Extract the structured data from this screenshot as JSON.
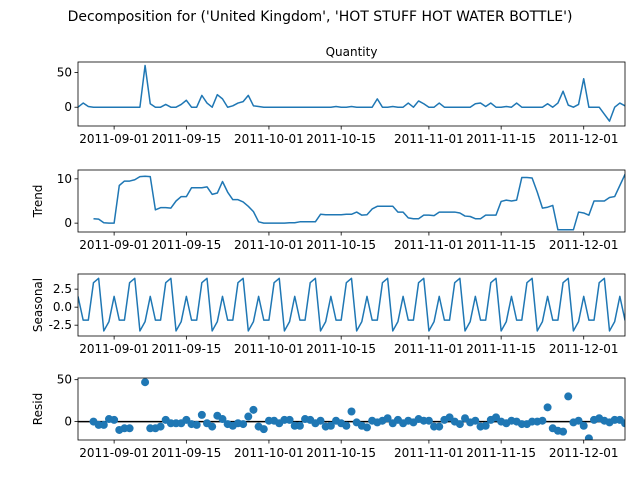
{
  "title": "Decomposition for ('United Kingdom', 'HOT STUFF HOT WATER BOTTLE')",
  "chart_data": [
    {
      "type": "line",
      "title": "Quantity",
      "ylabel": "",
      "ylim": [
        -27,
        65
      ],
      "yticks": [
        0,
        50
      ],
      "x_start": "2011-08-25",
      "x_range": [
        "2011-08-25",
        "2011-12-09"
      ],
      "xticks": [
        "2011-09-01",
        "2011-09-15",
        "2011-10-01",
        "2011-10-15",
        "2011-11-01",
        "2011-11-15",
        "2011-12-01"
      ],
      "color": "#1f77b4",
      "values": [
        0,
        6,
        1,
        0,
        0,
        0,
        0,
        0,
        0,
        0,
        0,
        0,
        0,
        60,
        5,
        0,
        0,
        4,
        0,
        0,
        4,
        10,
        0,
        0,
        17,
        6,
        0,
        18,
        12,
        0,
        2,
        6,
        8,
        17,
        2,
        1,
        0,
        0,
        0,
        0,
        0,
        0,
        0,
        0,
        0,
        0,
        0,
        0,
        0,
        0,
        1,
        0,
        0,
        1,
        0,
        0,
        0,
        0,
        12,
        0,
        0,
        1,
        0,
        0,
        6,
        0,
        9,
        5,
        0,
        0,
        6,
        0,
        0,
        0,
        0,
        0,
        0,
        5,
        6,
        1,
        6,
        0,
        0,
        1,
        0,
        6,
        0,
        0,
        0,
        0,
        0,
        5,
        0,
        6,
        23,
        3,
        0,
        4,
        41,
        0,
        0,
        0,
        -10,
        -20,
        0,
        6,
        2,
        0,
        3,
        1,
        5,
        0,
        2,
        1,
        26,
        0,
        0,
        6,
        7,
        17,
        15,
        5
      ]
    },
    {
      "type": "line",
      "title": "",
      "ylabel": "Trend",
      "ylim": [
        -2,
        12
      ],
      "yticks": [
        0,
        10
      ],
      "x_start": "2011-08-25",
      "x_range": [
        "2011-08-25",
        "2011-12-09"
      ],
      "xticks": [
        "2011-09-01",
        "2011-09-15",
        "2011-10-01",
        "2011-10-15",
        "2011-11-01",
        "2011-11-15",
        "2011-12-01"
      ],
      "color": "#1f77b4",
      "values": [
        null,
        null,
        null,
        1.0,
        0.9,
        0.1,
        0.0,
        0.0,
        8.5,
        9.5,
        9.5,
        9.8,
        10.5,
        10.6,
        10.5,
        3.0,
        3.5,
        3.5,
        3.4,
        5.0,
        6.0,
        6.0,
        8.0,
        8.0,
        8.0,
        8.2,
        6.5,
        6.8,
        9.4,
        7.0,
        5.3,
        5.3,
        4.8,
        3.8,
        2.6,
        0.3,
        0.0,
        0.0,
        0.0,
        0.0,
        0.0,
        0.1,
        0.1,
        0.3,
        0.3,
        0.3,
        0.3,
        2.0,
        1.9,
        1.9,
        1.9,
        1.9,
        2.0,
        2.0,
        2.5,
        1.8,
        1.9,
        3.2,
        3.8,
        3.8,
        3.8,
        3.8,
        2.5,
        2.5,
        1.2,
        1.0,
        1.0,
        1.8,
        1.8,
        1.7,
        2.5,
        2.5,
        2.5,
        2.5,
        2.3,
        1.6,
        1.5,
        1.0,
        1.0,
        1.8,
        1.8,
        1.8,
        4.9,
        5.2,
        5.0,
        5.2,
        10.3,
        10.3,
        10.2,
        7.0,
        3.4,
        3.6,
        4.0,
        -1.5,
        -1.5,
        -1.5,
        -1.5,
        2.5,
        2.3,
        1.8,
        5.0,
        5.0,
        5.0,
        5.8,
        6.0,
        8.5,
        11.0,
        7.5
      ]
    },
    {
      "type": "line",
      "title": "",
      "ylabel": "Seasonal",
      "ylim": [
        -4.0,
        4.6
      ],
      "yticks": [
        -2.5,
        0.0,
        2.5
      ],
      "x_start": "2011-08-25",
      "x_range": [
        "2011-08-25",
        "2011-12-09"
      ],
      "xticks": [
        "2011-09-01",
        "2011-09-15",
        "2011-10-01",
        "2011-10-15",
        "2011-11-01",
        "2011-11-15",
        "2011-12-01"
      ],
      "color": "#1f77b4",
      "period": 7,
      "pattern": [
        1.5,
        -1.8,
        -1.8,
        3.4,
        4.0,
        -3.3,
        -2.0
      ],
      "n_points": 122
    },
    {
      "type": "scatter",
      "title": "",
      "ylabel": "Resid",
      "ylim": [
        -22,
        52
      ],
      "yticks": [
        0,
        50
      ],
      "x_start": "2011-08-25",
      "x_range": [
        "2011-08-25",
        "2011-12-09"
      ],
      "xticks": [
        "2011-09-01",
        "2011-09-15",
        "2011-10-01",
        "2011-10-15",
        "2011-11-01",
        "2011-11-15",
        "2011-12-01"
      ],
      "color": "#1f77b4",
      "baseline": 0,
      "values": [
        null,
        null,
        null,
        0,
        -4,
        -4,
        3,
        2,
        -10,
        -8,
        -8,
        null,
        null,
        47,
        -8,
        -8,
        -6,
        2,
        -2,
        -2,
        -2,
        2,
        -3,
        -4,
        8,
        -2,
        -6,
        7,
        3,
        -3,
        -5,
        -2,
        -3,
        6,
        14,
        -6,
        -9,
        1,
        1,
        -2,
        2,
        2,
        -5,
        -5,
        3,
        2,
        -2,
        1,
        -6,
        -5,
        1,
        -2,
        -5,
        12,
        -1,
        -5,
        -7,
        1,
        -1,
        1,
        4,
        -2,
        2,
        -2,
        1,
        -1,
        3,
        1,
        1,
        -6,
        -6,
        2,
        5,
        0,
        -3,
        4,
        -1,
        1,
        -6,
        -5,
        2,
        5,
        0,
        -2,
        1,
        0,
        -3,
        -3,
        0,
        0,
        1,
        17,
        -8,
        -11,
        -12,
        30,
        -1,
        1,
        -5,
        -20,
        2,
        4,
        1,
        -1,
        2,
        2,
        -2,
        3,
        -4,
        -7,
        15,
        -2,
        -5,
        -1,
        2,
        -2,
        null,
        null,
        null,
        null,
        null,
        null
      ]
    }
  ]
}
